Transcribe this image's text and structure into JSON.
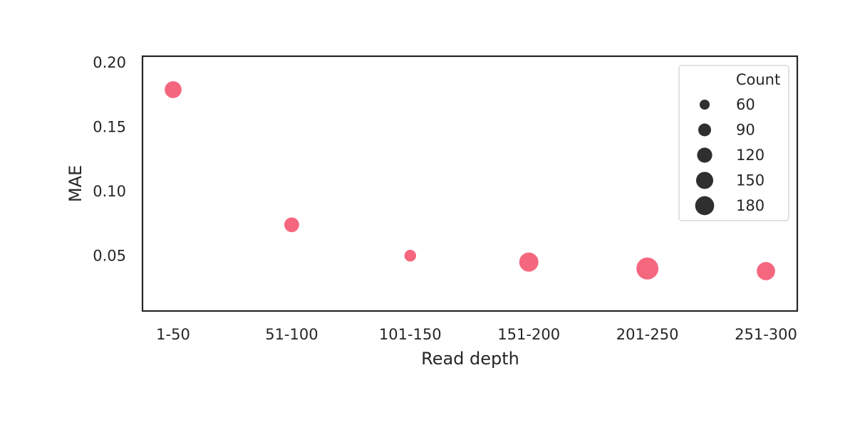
{
  "chart_data": {
    "type": "scatter",
    "title": "",
    "xlabel": "Read depth",
    "ylabel": "MAE",
    "categories": [
      "1-50",
      "51-100",
      "101-150",
      "151-200",
      "201-250",
      "251-300"
    ],
    "y": [
      0.179,
      0.074,
      0.05,
      0.045,
      0.04,
      0.038
    ],
    "size_values": [
      90,
      70,
      45,
      115,
      150,
      105
    ],
    "ylim": [
      0.007,
      0.205
    ],
    "yticks": [
      0.05,
      0.1,
      0.15,
      0.2
    ],
    "ytick_labels": [
      "0.05",
      "0.10",
      "0.15",
      "0.20"
    ],
    "grid": false,
    "legend": {
      "title": "Count",
      "placement": "top-right",
      "entries": [
        {
          "label": "60",
          "value": 60
        },
        {
          "label": "90",
          "value": 90
        },
        {
          "label": "120",
          "value": 120
        },
        {
          "label": "150",
          "value": 150
        },
        {
          "label": "180",
          "value": 180
        }
      ]
    },
    "colors": {
      "point": "#f5677f",
      "legend_marker": "#2f2f2f",
      "axes": "#262626"
    }
  }
}
